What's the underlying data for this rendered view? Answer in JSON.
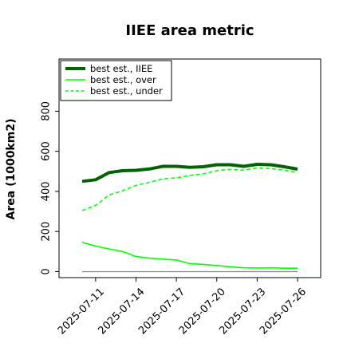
{
  "chart_data": {
    "type": "line",
    "title": "IIEE area metric",
    "xlabel": "",
    "ylabel": "Area (1000km2)",
    "x": [
      "2025-07-10",
      "2025-07-11",
      "2025-07-12",
      "2025-07-13",
      "2025-07-14",
      "2025-07-15",
      "2025-07-16",
      "2025-07-17",
      "2025-07-18",
      "2025-07-19",
      "2025-07-20",
      "2025-07-21",
      "2025-07-22",
      "2025-07-23",
      "2025-07-24",
      "2025-07-25",
      "2025-07-26"
    ],
    "xticks": [
      "2025-07-11",
      "2025-07-14",
      "2025-07-17",
      "2025-07-20",
      "2025-07-23",
      "2025-07-26"
    ],
    "yticks": [
      0,
      200,
      400,
      600,
      800
    ],
    "ylim": [
      -30,
      1060
    ],
    "grid": false,
    "legend": "top-left",
    "series": [
      {
        "name": "best est., IIEE",
        "color": "#006400",
        "style": "solid-thick",
        "values": [
          450,
          458,
          494,
          503,
          505,
          512,
          525,
          525,
          520,
          523,
          533,
          533,
          525,
          535,
          533,
          523,
          511
        ]
      },
      {
        "name": "best est., over",
        "color": "#00ff00",
        "style": "solid",
        "values": [
          146,
          127,
          113,
          100,
          75,
          67,
          62,
          58,
          40,
          36,
          30,
          24,
          19,
          18,
          19,
          17,
          17
        ]
      },
      {
        "name": "best est., under",
        "color": "#00ff00",
        "style": "dashed",
        "values": [
          304,
          330,
          382,
          403,
          430,
          445,
          463,
          467,
          480,
          487,
          503,
          510,
          506,
          517,
          514,
          506,
          494
        ]
      },
      {
        "name": "",
        "color": "#888888",
        "style": "baseline",
        "values": [
          0,
          0,
          0,
          0,
          0,
          0,
          0,
          0,
          0,
          0,
          0,
          0,
          0,
          0,
          0,
          0,
          0
        ]
      }
    ]
  }
}
